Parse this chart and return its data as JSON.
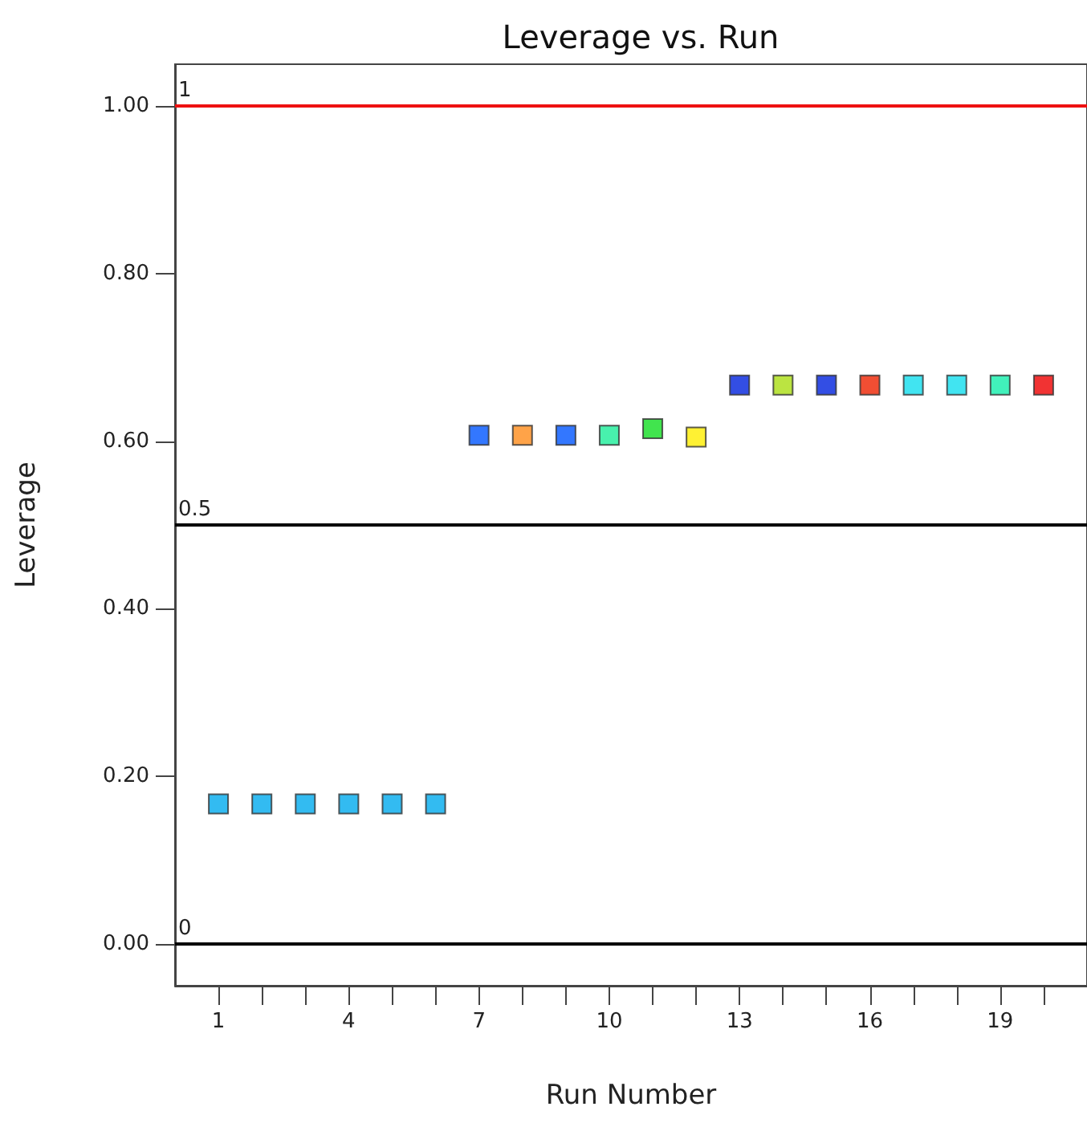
{
  "chart_data": {
    "type": "scatter",
    "title": "Leverage vs. Run",
    "xlabel": "Run Number",
    "ylabel": "Leverage",
    "x": [
      1,
      2,
      3,
      4,
      5,
      6,
      7,
      8,
      9,
      10,
      11,
      12,
      13,
      14,
      15,
      16,
      17,
      18,
      19,
      20
    ],
    "values": [
      0.167,
      0.167,
      0.167,
      0.167,
      0.167,
      0.167,
      0.607,
      0.607,
      0.607,
      0.607,
      0.615,
      0.605,
      0.667,
      0.667,
      0.667,
      0.667,
      0.667,
      0.667,
      0.667,
      0.667
    ],
    "colors": [
      "#00aaee",
      "#00aaee",
      "#00aaee",
      "#00aaee",
      "#00aaee",
      "#00aaee",
      "#0055ff",
      "#ff8c1a",
      "#0055ff",
      "#1aee99",
      "#11dd22",
      "#ffee00",
      "#0022dd",
      "#aadd11",
      "#0022dd",
      "#ee2200",
      "#11ddee",
      "#11ddee",
      "#11eeaa",
      "#ee0000"
    ],
    "marker": "square",
    "grid": false,
    "xlim": [
      0,
      21
    ],
    "xticks": [
      1,
      {
        "value": 2,
        "label": null
      },
      {
        "value": 3,
        "label": null
      },
      4,
      {
        "value": 5,
        "label": null
      },
      {
        "value": 6,
        "label": null
      },
      7,
      {
        "value": 8,
        "label": null
      },
      {
        "value": 9,
        "label": null
      },
      10,
      {
        "value": 11,
        "label": null
      },
      {
        "value": 12,
        "label": null
      },
      13,
      {
        "value": 14,
        "label": null
      },
      {
        "value": 15,
        "label": null
      },
      16,
      {
        "value": 17,
        "label": null
      },
      {
        "value": 18,
        "label": null
      },
      19,
      {
        "value": 20,
        "label": null
      }
    ],
    "ylim": [
      -0.05,
      1.05
    ],
    "yticks": [
      {
        "value": 0,
        "label": "0.00"
      },
      {
        "value": 0.2,
        "label": "0.20"
      },
      {
        "value": 0.4,
        "label": "0.40"
      },
      {
        "value": 0.6,
        "label": "0.60"
      },
      {
        "value": 0.8,
        "label": "0.80"
      },
      {
        "value": 1,
        "label": "1.00"
      }
    ],
    "ref_lines": [
      {
        "axis": "y",
        "value": 1,
        "label": "1",
        "color": "#ee1111"
      },
      {
        "axis": "y",
        "value": 0.5,
        "label": "0.5",
        "color": "#000000"
      },
      {
        "axis": "y",
        "value": 0,
        "label": "0",
        "color": "#000000"
      }
    ]
  }
}
